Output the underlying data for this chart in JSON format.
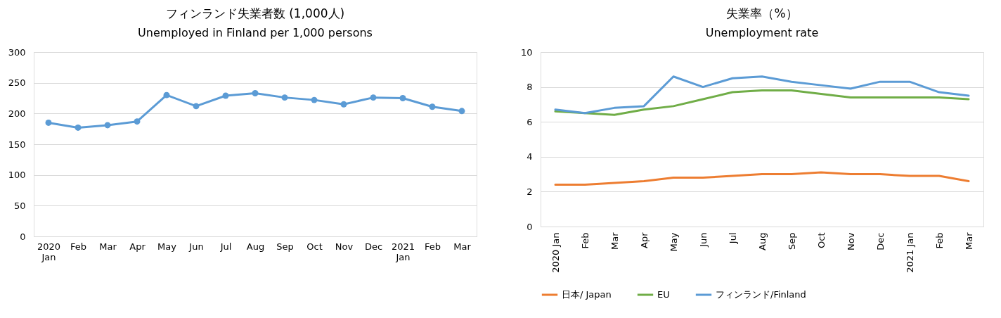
{
  "chart_data": [
    {
      "type": "line",
      "title": "フィンランド失業者数 (1,000人)",
      "subtitle": "Unemployed in Finland per 1,000 persons",
      "categories": [
        "2020 Jan",
        "Feb",
        "Mar",
        "Apr",
        "May",
        "Jun",
        "Jul",
        "Aug",
        "Sep",
        "Oct",
        "Nov",
        "Dec",
        "2021 Jan",
        "Feb",
        "Mar"
      ],
      "series": [
        {
          "color": "#5b9bd5",
          "values": [
            185,
            177,
            181,
            187,
            230,
            212,
            229,
            233,
            226,
            222,
            215,
            226,
            225,
            211,
            204
          ]
        }
      ],
      "ylim": [
        0,
        300
      ],
      "yticks": [
        0,
        50,
        100,
        150,
        200,
        250,
        300
      ],
      "grid": "y",
      "marker": "circle",
      "legend": false
    },
    {
      "type": "line",
      "title": "失業率（%）",
      "subtitle": "Unemployment rate",
      "categories": [
        "2020 Jan",
        "Feb",
        "Mar",
        "Apr",
        "May",
        "Jun",
        "Jul",
        "Aug",
        "Sep",
        "Oct",
        "Nov",
        "Dec",
        "2021 Jan",
        "Feb",
        "Mar"
      ],
      "series": [
        {
          "name": "日本/ Japan",
          "color": "#ed7d31",
          "values": [
            2.4,
            2.4,
            2.5,
            2.6,
            2.8,
            2.8,
            2.9,
            3.0,
            3.0,
            3.1,
            3.0,
            3.0,
            2.9,
            2.9,
            2.6
          ]
        },
        {
          "name": "EU",
          "color": "#70ad47",
          "values": [
            6.6,
            6.5,
            6.4,
            6.7,
            6.9,
            7.3,
            7.7,
            7.8,
            7.8,
            7.6,
            7.4,
            7.4,
            7.4,
            7.4,
            7.3
          ]
        },
        {
          "name": "フィンランド/Finland",
          "color": "#5b9bd5",
          "values": [
            6.7,
            6.5,
            6.8,
            6.9,
            8.6,
            8.0,
            8.5,
            8.6,
            8.3,
            8.1,
            7.9,
            8.3,
            8.3,
            7.7,
            7.5
          ]
        }
      ],
      "ylim": [
        0,
        10
      ],
      "yticks": [
        0,
        2,
        4,
        6,
        8,
        10
      ],
      "grid": "y",
      "marker": "none",
      "legend": "bottom"
    }
  ]
}
